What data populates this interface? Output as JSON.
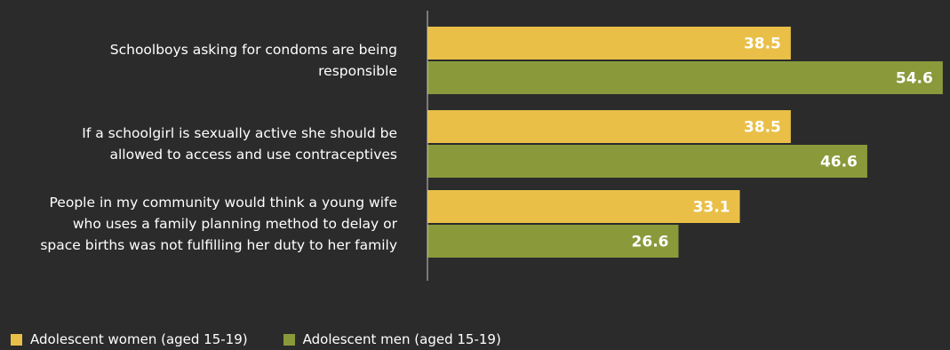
{
  "chart_data": {
    "type": "bar",
    "orientation": "horizontal",
    "categories": [
      [
        "Schoolboys asking for condoms are being",
        "responsible"
      ],
      [
        "If a schoolgirl is sexually active she should be",
        "allowed to access and use contraceptives"
      ],
      [
        "People in my community would think a young wife",
        "who uses a family planning method to delay or",
        "space births was not fulfilling her duty to her family"
      ]
    ],
    "series": [
      {
        "name": "Adolescent women (aged 15-19)",
        "values": [
          38.5,
          38.5,
          33.1
        ],
        "labels": [
          "38.5",
          "38.5",
          "33.1"
        ],
        "color": "#e9bf47"
      },
      {
        "name": "Adolescent men (aged 15-19)",
        "values": [
          54.6,
          46.6,
          26.6
        ],
        "labels": [
          "54.6",
          "46.6",
          "26.6"
        ],
        "color": "#8a9a3b"
      }
    ],
    "xlim": [
      0,
      55
    ],
    "grid": false,
    "legend_position": "bottom-left",
    "colors": {
      "background": "#2b2b2b",
      "axis": "#c8c8c8",
      "text": "#ffffff"
    }
  }
}
